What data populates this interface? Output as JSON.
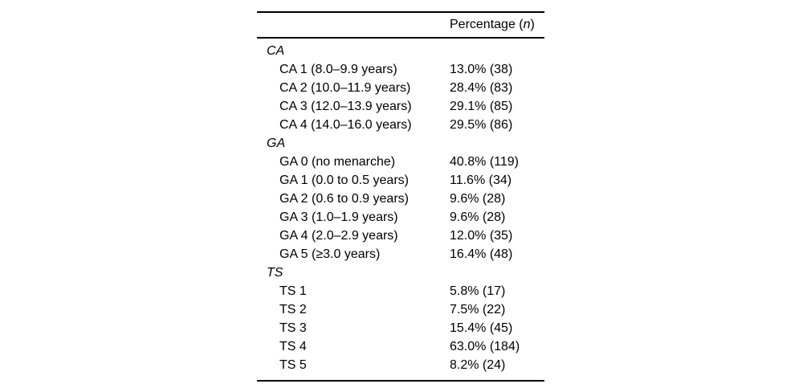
{
  "table": {
    "header": {
      "value_col_prefix": "Percentage (",
      "value_col_italic": "n",
      "value_col_suffix": ")"
    },
    "rows": [
      {
        "type": "section",
        "label": "CA"
      },
      {
        "type": "item",
        "label": "CA 1 (8.0–9.9 years)",
        "value": "13.0% (38)"
      },
      {
        "type": "item",
        "label": "CA 2 (10.0–11.9 years)",
        "value": "28.4% (83)"
      },
      {
        "type": "item",
        "label": "CA 3 (12.0–13.9 years)",
        "value": "29.1% (85)"
      },
      {
        "type": "item",
        "label": "CA 4 (14.0–16.0 years)",
        "value": "29.5% (86)"
      },
      {
        "type": "section",
        "label": "GA"
      },
      {
        "type": "item",
        "label": "GA 0 (no menarche)",
        "value": "40.8% (119)"
      },
      {
        "type": "item",
        "label": "GA 1 (0.0 to 0.5 years)",
        "value": "11.6% (34)"
      },
      {
        "type": "item",
        "label": "GA 2 (0.6 to 0.9 years)",
        "value": "9.6% (28)"
      },
      {
        "type": "item",
        "label": "GA 3 (1.0–1.9 years)",
        "value": "9.6% (28)"
      },
      {
        "type": "item",
        "label": "GA 4 (2.0–2.9 years)",
        "value": "12.0% (35)"
      },
      {
        "type": "item",
        "label": "GA 5 (≥3.0 years)",
        "value": "16.4% (48)"
      },
      {
        "type": "section",
        "label": "TS"
      },
      {
        "type": "item",
        "label": "TS 1",
        "value": "5.8% (17)"
      },
      {
        "type": "item",
        "label": "TS 2",
        "value": "7.5% (22)"
      },
      {
        "type": "item",
        "label": "TS 3",
        "value": "15.4% (45)"
      },
      {
        "type": "item",
        "label": "TS 4",
        "value": "63.0% (184)"
      },
      {
        "type": "item",
        "label": "TS 5",
        "value": "8.2% (24)"
      }
    ]
  }
}
